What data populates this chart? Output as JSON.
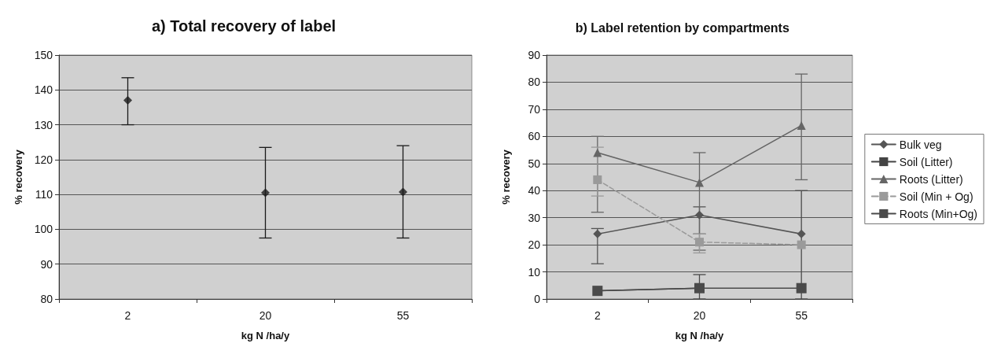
{
  "chart_data": [
    {
      "type": "scatter",
      "title": "a) Total recovery of label",
      "xlabel": "kg N /ha/y",
      "ylabel": "% recovery",
      "categories": [
        "2",
        "20",
        "55"
      ],
      "series": [
        {
          "color": "#1a1a1a",
          "marker": "diamond",
          "values": [
            137,
            110.5,
            110.7
          ],
          "errors": [
            [
              130,
              143.5
            ],
            [
              97.5,
              123.5
            ],
            [
              97.5,
              124
            ]
          ]
        }
      ],
      "ylim": [
        80,
        150
      ],
      "yticks": [
        80,
        90,
        100,
        110,
        120,
        130,
        140,
        150
      ],
      "grid": "y",
      "legend": false
    },
    {
      "type": "line",
      "title": "b) Label retention by compartments",
      "xlabel": "kg N /ha/y",
      "ylabel": "% recovery",
      "categories": [
        "2",
        "20",
        "55"
      ],
      "series": [
        {
          "name": "Bulk veg",
          "color": "#555555",
          "marker": "diamond",
          "line_style": "solid",
          "values": [
            24,
            31,
            24
          ],
          "errors": [
            [
              13,
              26
            ],
            [
              24,
              34
            ],
            null
          ]
        },
        {
          "name": "Soil (Litter)",
          "color": "#444444",
          "marker": "square",
          "line_style": "solid",
          "values": [
            3,
            4,
            null
          ]
        },
        {
          "name": "Roots (Litter)",
          "color": "#666666",
          "marker": "triangle",
          "line_style": "solid",
          "values": [
            54,
            43,
            64
          ],
          "errors": [
            [
              32,
              60
            ],
            [
              18,
              54
            ],
            [
              44,
              83
            ]
          ]
        },
        {
          "name": "Soil (Min + Og)",
          "color": "#9a9a9a",
          "marker": "square",
          "line_style": "dashed",
          "values": [
            44,
            21,
            20
          ],
          "errors": [
            [
              38,
              56
            ],
            [
              17,
              24
            ],
            null
          ]
        },
        {
          "name": "Roots (Min+Og)",
          "color": "#4a4a4a",
          "marker": "square",
          "line_style": "solid",
          "values": [
            3,
            4,
            4
          ],
          "errors": [
            null,
            [
              0,
              9
            ],
            [
              0,
              40
            ]
          ]
        }
      ],
      "ylim": [
        0,
        90
      ],
      "yticks": [
        0,
        10,
        20,
        30,
        40,
        50,
        60,
        70,
        80,
        90
      ],
      "grid": "y",
      "legend": "right"
    }
  ]
}
